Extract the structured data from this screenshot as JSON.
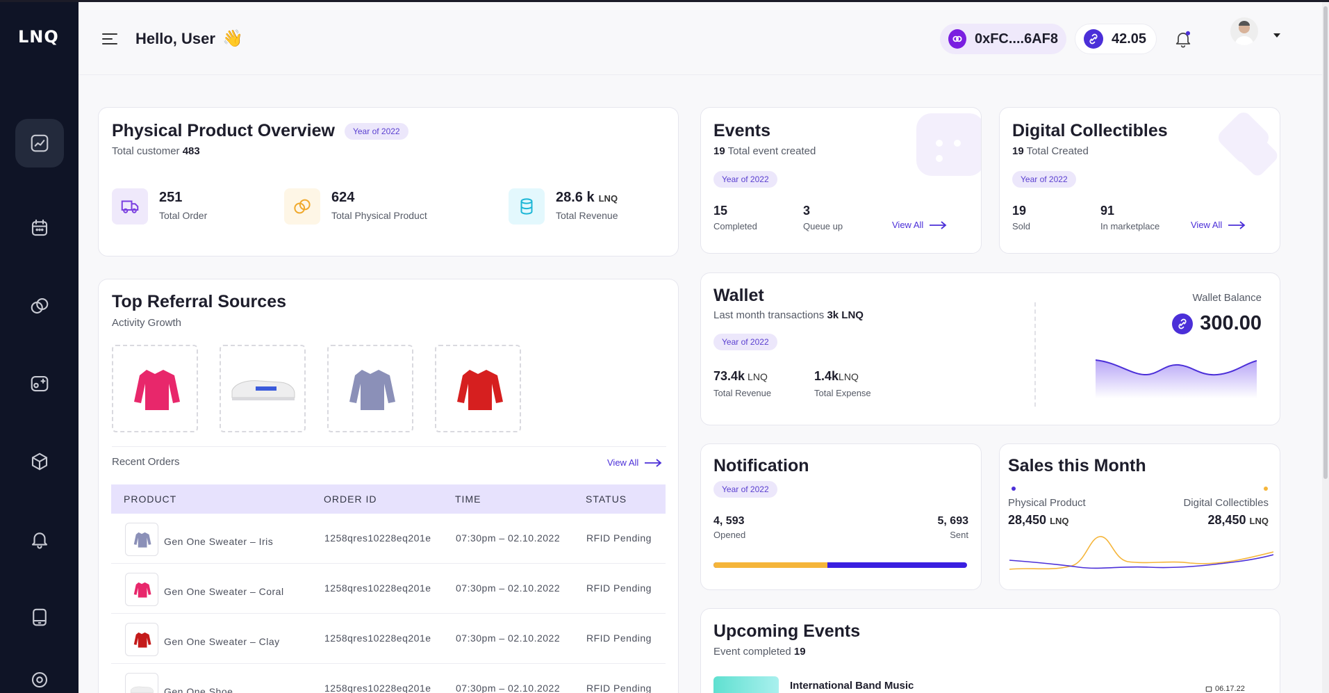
{
  "app": {
    "logo": "LNQ"
  },
  "header": {
    "greeting": "Hello, User",
    "wave": "👋",
    "wallet_address": "0xFC....6AF8",
    "token_balance": "42.05"
  },
  "physical_overview": {
    "title": "Physical Product Overview",
    "badge": "Year of 2022",
    "customer_label": "Total customer",
    "customer_count": "483",
    "stats": [
      {
        "value": "251",
        "label": "Total Order"
      },
      {
        "value": "624",
        "label": "Total Physical Product"
      },
      {
        "value": "28.6 k",
        "unit": "LNQ",
        "label": "Total Revenue"
      }
    ]
  },
  "events": {
    "title": "Events",
    "count": "19",
    "count_label": "Total event created",
    "badge": "Year of 2022",
    "stats": [
      {
        "value": "15",
        "label": "Completed"
      },
      {
        "value": "3",
        "label": "Queue up"
      }
    ],
    "view_all": "View All"
  },
  "collectibles": {
    "title": "Digital Collectibles",
    "count": "19",
    "count_label": "Total Created",
    "badge": "Year of 2022",
    "stats": [
      {
        "value": "19",
        "label": "Sold"
      },
      {
        "value": "91",
        "label": "In marketplace"
      }
    ],
    "view_all": "View All"
  },
  "referral": {
    "title": "Top Referral Sources",
    "subtitle": "Activity Growth",
    "recent_orders": "Recent Orders",
    "view_all": "View All",
    "columns": [
      "PRODUCT",
      "ORDER ID",
      "TIME",
      "STATUS"
    ],
    "rows": [
      {
        "product": "Gen One Sweater – Iris",
        "order_id": "1258qres10228eq201e",
        "time": "07:30pm – 02.10.2022",
        "status": "RFID Pending"
      },
      {
        "product": "Gen One Sweater – Coral",
        "order_id": "1258qres10228eq201e",
        "time": "07:30pm – 02.10.2022",
        "status": "RFID Pending"
      },
      {
        "product": "Gen One Sweater – Clay",
        "order_id": "1258qres10228eq201e",
        "time": "07:30pm – 02.10.2022",
        "status": "RFID Pending"
      },
      {
        "product": "Gen One Shoe",
        "order_id": "1258qres10228eq201e",
        "time": "07:30pm – 02.10.2022",
        "status": "RFID Pending"
      }
    ]
  },
  "wallet": {
    "title": "Wallet",
    "subtitle": "Last month transactions",
    "subtitle_value": "3k LNQ",
    "badge": "Year of 2022",
    "revenue": "73.4k",
    "revenue_unit": "LNQ",
    "revenue_label": "Total Revenue",
    "expense": "1.4k",
    "expense_unit": "LNQ",
    "expense_label": "Total Expense",
    "balance_label": "Wallet Balance",
    "balance": "300.00"
  },
  "notification": {
    "title": "Notification",
    "badge": "Year of 2022",
    "opened": "4, 593",
    "opened_label": "Opened",
    "sent": "5, 693",
    "sent_label": "Sent",
    "opened_fraction": 0.45
  },
  "sales": {
    "title": "Sales this Month",
    "series": [
      {
        "name": "Physical Product",
        "value": "28,450",
        "unit": "LNQ",
        "color": "#4b2fd8"
      },
      {
        "name": "Digital Collectibles",
        "value": "28,450",
        "unit": "LNQ",
        "color": "#f5b53a"
      }
    ]
  },
  "upcoming": {
    "title": "Upcoming Events",
    "subtitle": "Event completed",
    "count": "19",
    "first_event": "International Band Music",
    "first_date": "06.17.22"
  },
  "colors": {
    "accent": "#4b2fd8",
    "sidebar": "#0f1426",
    "yellow": "#f5b53a"
  }
}
